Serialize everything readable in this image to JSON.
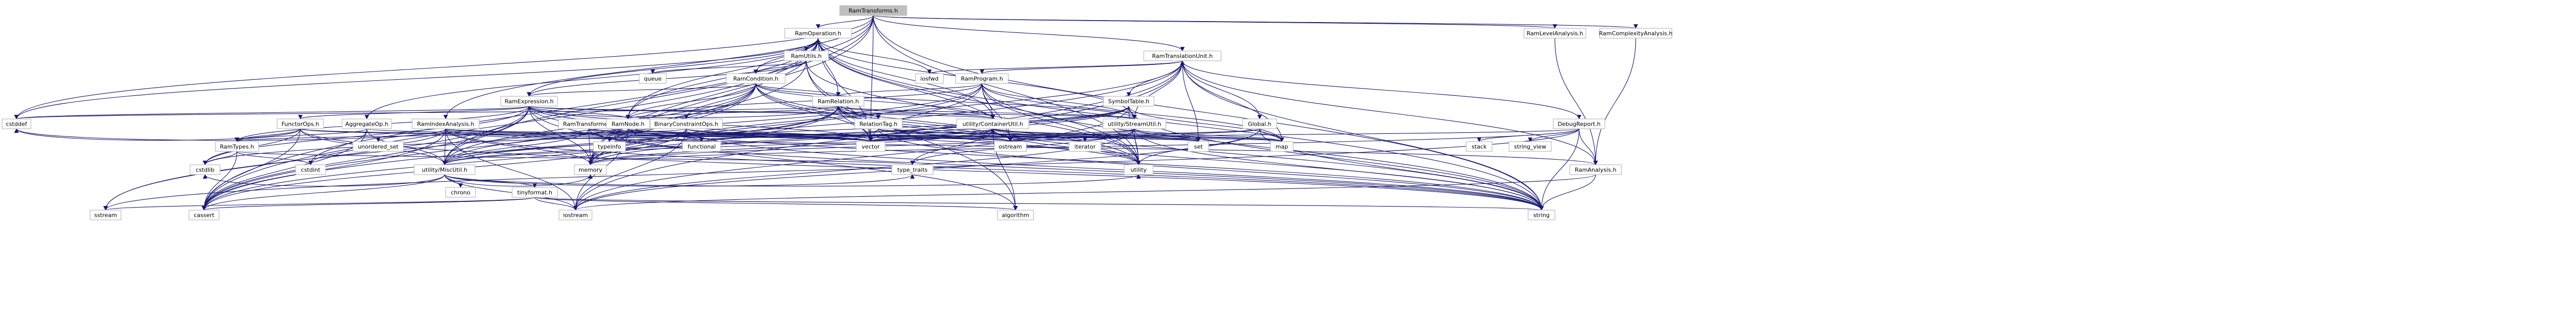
{
  "graph": {
    "root": "RamTransforms.h",
    "colors": {
      "edge": "#191970",
      "node_border": "#c0c0c0",
      "node_fill": "#ffffff",
      "root_fill": "#bfbfbf",
      "linked_border": "#ff0000",
      "text": "#000000"
    },
    "nodes": [
      {
        "id": "RamTransforms.h",
        "kind": "root"
      },
      {
        "id": "RamOperation.h",
        "kind": "file"
      },
      {
        "id": "RamTranslationUnit.h",
        "kind": "file"
      },
      {
        "id": "RamLevelAnalysis.h",
        "kind": "file"
      },
      {
        "id": "RamComplexityAnalysis.h",
        "kind": "file"
      },
      {
        "id": "RamUtils.h",
        "kind": "file"
      },
      {
        "id": "RamCondition.h",
        "kind": "file"
      },
      {
        "id": "RamProgram.h",
        "kind": "linked"
      },
      {
        "id": "SymbolTable.h",
        "kind": "linked"
      },
      {
        "id": "RamExpression.h",
        "kind": "file"
      },
      {
        "id": "RamRelation.h",
        "kind": "file"
      },
      {
        "id": "RamIndexAnalysis.h",
        "kind": "file"
      },
      {
        "id": "FunctorOps.h",
        "kind": "file"
      },
      {
        "id": "AggregateOp.h",
        "kind": "file"
      },
      {
        "id": "RamTransformer.h",
        "kind": "file"
      },
      {
        "id": "BinaryConstraintOps.h",
        "kind": "file"
      },
      {
        "id": "RamNode.h",
        "kind": "file"
      },
      {
        "id": "RelationTag.h",
        "kind": "file"
      },
      {
        "id": "utility/ContainerUtil.h",
        "kind": "file"
      },
      {
        "id": "utility/StreamUtil.h",
        "kind": "file"
      },
      {
        "id": "Global.h",
        "kind": "file"
      },
      {
        "id": "DebugReport.h",
        "kind": "file"
      },
      {
        "id": "RamTypes.h",
        "kind": "linked"
      },
      {
        "id": "utility/MiscUtil.h",
        "kind": "file"
      },
      {
        "id": "tinyformat.h",
        "kind": "file"
      },
      {
        "id": "RamAnalysis.h",
        "kind": "file"
      },
      {
        "id": "cstddef",
        "kind": "system"
      },
      {
        "id": "queue",
        "kind": "system"
      },
      {
        "id": "iosfwd",
        "kind": "system"
      },
      {
        "id": "unordered_set",
        "kind": "system"
      },
      {
        "id": "functional",
        "kind": "system"
      },
      {
        "id": "typeinfo",
        "kind": "system"
      },
      {
        "id": "vector",
        "kind": "system"
      },
      {
        "id": "ostream",
        "kind": "system"
      },
      {
        "id": "iterator",
        "kind": "system"
      },
      {
        "id": "set",
        "kind": "system"
      },
      {
        "id": "map",
        "kind": "system"
      },
      {
        "id": "stack",
        "kind": "system"
      },
      {
        "id": "string_view",
        "kind": "system"
      },
      {
        "id": "cstdlib",
        "kind": "system"
      },
      {
        "id": "cstdint",
        "kind": "system"
      },
      {
        "id": "chrono",
        "kind": "system"
      },
      {
        "id": "memory",
        "kind": "system"
      },
      {
        "id": "type_traits",
        "kind": "system"
      },
      {
        "id": "utility",
        "kind": "system"
      },
      {
        "id": "sstream",
        "kind": "system"
      },
      {
        "id": "cassert",
        "kind": "system"
      },
      {
        "id": "iostream",
        "kind": "system"
      },
      {
        "id": "algorithm",
        "kind": "system"
      },
      {
        "id": "string",
        "kind": "system"
      }
    ],
    "edges": [
      [
        "RamTransforms.h",
        "RamOperation.h"
      ],
      [
        "RamTransforms.h",
        "RamTranslationUnit.h"
      ],
      [
        "RamTransforms.h",
        "RamLevelAnalysis.h"
      ],
      [
        "RamTransforms.h",
        "RamComplexityAnalysis.h"
      ],
      [
        "RamTransforms.h",
        "RamIndexAnalysis.h"
      ],
      [
        "RamTransforms.h",
        "RamNode.h"
      ],
      [
        "RamTransforms.h",
        "vector"
      ],
      [
        "RamTransforms.h",
        "string"
      ],
      [
        "RamTransforms.h",
        "memory"
      ],
      [
        "RamTransforms.h",
        "utility"
      ],
      [
        "RamTransforms.h",
        "cstddef"
      ],
      [
        "RamTransforms.h",
        "cassert"
      ],
      [
        "RamOperation.h",
        "RamUtils.h"
      ],
      [
        "RamOperation.h",
        "RamCondition.h"
      ],
      [
        "RamOperation.h",
        "RamExpression.h"
      ],
      [
        "RamOperation.h",
        "RamRelation.h"
      ],
      [
        "RamOperation.h",
        "AggregateOp.h"
      ],
      [
        "RamOperation.h",
        "RamNode.h"
      ],
      [
        "RamOperation.h",
        "utility/ContainerUtil.h"
      ],
      [
        "RamOperation.h",
        "utility/MiscUtil.h"
      ],
      [
        "RamOperation.h",
        "utility/StreamUtil.h"
      ],
      [
        "RamOperation.h",
        "iosfwd"
      ],
      [
        "RamOperation.h",
        "cstddef"
      ],
      [
        "RamOperation.h",
        "vector"
      ],
      [
        "RamOperation.h",
        "ostream"
      ],
      [
        "RamOperation.h",
        "memory"
      ],
      [
        "RamOperation.h",
        "utility"
      ],
      [
        "RamOperation.h",
        "string"
      ],
      [
        "RamOperation.h",
        "cassert"
      ],
      [
        "RamUtils.h",
        "RamCondition.h"
      ],
      [
        "RamUtils.h",
        "RamExpression.h"
      ],
      [
        "RamUtils.h",
        "queue"
      ],
      [
        "RamUtils.h",
        "memory"
      ],
      [
        "RamUtils.h",
        "vector"
      ],
      [
        "RamUtils.h",
        "utility"
      ],
      [
        "RamUtils.h",
        "algorithm"
      ],
      [
        "RamCondition.h",
        "RamExpression.h"
      ],
      [
        "RamCondition.h",
        "RamRelation.h"
      ],
      [
        "RamCondition.h",
        "RamNode.h"
      ],
      [
        "RamCondition.h",
        "BinaryConstraintOps.h"
      ],
      [
        "RamCondition.h",
        "utility/ContainerUtil.h"
      ],
      [
        "RamCondition.h",
        "utility/MiscUtil.h"
      ],
      [
        "RamCondition.h",
        "utility/StreamUtil.h"
      ],
      [
        "RamCondition.h",
        "memory"
      ],
      [
        "RamCondition.h",
        "sstream"
      ],
      [
        "RamCondition.h",
        "string"
      ],
      [
        "RamCondition.h",
        "vector"
      ],
      [
        "RamCondition.h",
        "utility"
      ],
      [
        "RamCondition.h",
        "cassert"
      ],
      [
        "RamTranslationUnit.h",
        "RamProgram.h"
      ],
      [
        "RamTranslationUnit.h",
        "SymbolTable.h"
      ],
      [
        "RamTranslationUnit.h",
        "Global.h"
      ],
      [
        "RamTranslationUnit.h",
        "DebugReport.h"
      ],
      [
        "RamTranslationUnit.h",
        "RamAnalysis.h"
      ],
      [
        "RamTranslationUnit.h",
        "utility/StreamUtil.h"
      ],
      [
        "RamTranslationUnit.h",
        "iosfwd"
      ],
      [
        "RamTranslationUnit.h",
        "map"
      ],
      [
        "RamTranslationUnit.h",
        "set"
      ],
      [
        "RamTranslationUnit.h",
        "memory"
      ],
      [
        "RamTranslationUnit.h",
        "string"
      ],
      [
        "RamTranslationUnit.h",
        "iostream"
      ],
      [
        "RamTranslationUnit.h",
        "cassert"
      ],
      [
        "RamProgram.h",
        "RamRelation.h"
      ],
      [
        "RamProgram.h",
        "RamNode.h"
      ],
      [
        "RamProgram.h",
        "utility/ContainerUtil.h"
      ],
      [
        "RamProgram.h",
        "utility/MiscUtil.h"
      ],
      [
        "RamProgram.h",
        "utility/StreamUtil.h"
      ],
      [
        "RamProgram.h",
        "map"
      ],
      [
        "RamProgram.h",
        "memory"
      ],
      [
        "RamProgram.h",
        "ostream"
      ],
      [
        "RamProgram.h",
        "string"
      ],
      [
        "RamProgram.h",
        "utility"
      ],
      [
        "RamProgram.h",
        "vector"
      ],
      [
        "SymbolTable.h",
        "utility/MiscUtil.h"
      ],
      [
        "SymbolTable.h",
        "utility/StreamUtil.h"
      ],
      [
        "SymbolTable.h",
        "map"
      ],
      [
        "SymbolTable.h",
        "memory"
      ],
      [
        "SymbolTable.h",
        "string"
      ],
      [
        "SymbolTable.h",
        "vector"
      ],
      [
        "SymbolTable.h",
        "utility"
      ],
      [
        "SymbolTable.h",
        "iostream"
      ],
      [
        "SymbolTable.h",
        "cstdlib"
      ],
      [
        "RamExpression.h",
        "FunctorOps.h"
      ],
      [
        "RamExpression.h",
        "RamNode.h"
      ],
      [
        "RamExpression.h",
        "RamRelation.h"
      ],
      [
        "RamExpression.h",
        "RamTypes.h"
      ],
      [
        "RamExpression.h",
        "utility/ContainerUtil.h"
      ],
      [
        "RamExpression.h",
        "utility/MiscUtil.h"
      ],
      [
        "RamExpression.h",
        "utility/StreamUtil.h"
      ],
      [
        "RamExpression.h",
        "cstddef"
      ],
      [
        "RamExpression.h",
        "memory"
      ],
      [
        "RamExpression.h",
        "sstream"
      ],
      [
        "RamExpression.h",
        "string"
      ],
      [
        "RamExpression.h",
        "utility"
      ],
      [
        "RamExpression.h",
        "vector"
      ],
      [
        "RamExpression.h",
        "cassert"
      ],
      [
        "RamExpression.h",
        "cstdlib"
      ],
      [
        "RamExpression.h",
        "algorithm"
      ],
      [
        "RamRelation.h",
        "RamNode.h"
      ],
      [
        "RamRelation.h",
        "RelationTag.h"
      ],
      [
        "RamRelation.h",
        "utility/ContainerUtil.h"
      ],
      [
        "RamRelation.h",
        "utility/StreamUtil.h"
      ],
      [
        "RamRelation.h",
        "memory"
      ],
      [
        "RamRelation.h",
        "ostream"
      ],
      [
        "RamRelation.h",
        "string"
      ],
      [
        "RamRelation.h",
        "utility"
      ],
      [
        "RamRelation.h",
        "vector"
      ],
      [
        "RamRelation.h",
        "cassert"
      ],
      [
        "RamRelation.h",
        "cstddef"
      ],
      [
        "RamIndexAnalysis.h",
        "RamAnalysis.h"
      ],
      [
        "RamIndexAnalysis.h",
        "RamRelation.h"
      ],
      [
        "RamIndexAnalysis.h",
        "utility/MiscUtil.h"
      ],
      [
        "RamIndexAnalysis.h",
        "unordered_set"
      ],
      [
        "RamIndexAnalysis.h",
        "memory"
      ],
      [
        "RamIndexAnalysis.h",
        "set"
      ],
      [
        "RamIndexAnalysis.h",
        "map"
      ],
      [
        "RamIndexAnalysis.h",
        "string"
      ],
      [
        "RamIndexAnalysis.h",
        "vector"
      ],
      [
        "RamIndexAnalysis.h",
        "iostream"
      ],
      [
        "RamIndexAnalysis.h",
        "cassert"
      ],
      [
        "RamIndexAnalysis.h",
        "cstddef"
      ],
      [
        "RamIndexAnalysis.h",
        "cstdint"
      ],
      [
        "FunctorOps.h",
        "RamTypes.h"
      ],
      [
        "FunctorOps.h",
        "utility/MiscUtil.h"
      ],
      [
        "FunctorOps.h",
        "functional"
      ],
      [
        "FunctorOps.h",
        "string"
      ],
      [
        "FunctorOps.h",
        "vector"
      ],
      [
        "FunctorOps.h",
        "cassert"
      ],
      [
        "FunctorOps.h",
        "cstdlib"
      ],
      [
        "FunctorOps.h",
        "cstddef"
      ],
      [
        "AggregateOp.h",
        "RamTypes.h"
      ],
      [
        "AggregateOp.h",
        "utility/MiscUtil.h"
      ],
      [
        "AggregateOp.h",
        "ostream"
      ],
      [
        "AggregateOp.h",
        "cassert"
      ],
      [
        "AggregateOp.h",
        "cstdint"
      ],
      [
        "RamTransformer.h",
        "RamTranslationUnit.h"
      ],
      [
        "RamTransformer.h",
        "utility/MiscUtil.h"
      ],
      [
        "RamTransformer.h",
        "typeinfo"
      ],
      [
        "RamTransformer.h",
        "memory"
      ],
      [
        "RamTransformer.h",
        "string"
      ],
      [
        "RamTransformer.h",
        "vector"
      ],
      [
        "RamTransformer.h",
        "set"
      ],
      [
        "BinaryConstraintOps.h",
        "RamTypes.h"
      ],
      [
        "BinaryConstraintOps.h",
        "utility/MiscUtil.h"
      ],
      [
        "BinaryConstraintOps.h",
        "iostream"
      ],
      [
        "BinaryConstraintOps.h",
        "string"
      ],
      [
        "BinaryConstraintOps.h",
        "vector"
      ],
      [
        "BinaryConstraintOps.h",
        "cassert"
      ],
      [
        "BinaryConstraintOps.h",
        "ostream"
      ],
      [
        "RamNode.h",
        "functional"
      ],
      [
        "RamNode.h",
        "memory"
      ],
      [
        "RamNode.h",
        "vector"
      ],
      [
        "RamNode.h",
        "typeinfo"
      ],
      [
        "RamNode.h",
        "ostream"
      ],
      [
        "RamNode.h",
        "iostream"
      ],
      [
        "RelationTag.h",
        "utility/MiscUtil.h"
      ],
      [
        "RelationTag.h",
        "map"
      ],
      [
        "RelationTag.h",
        "set"
      ],
      [
        "RelationTag.h",
        "ostream"
      ],
      [
        "RelationTag.h",
        "string"
      ],
      [
        "utility/ContainerUtil.h",
        "utility/MiscUtil.h"
      ],
      [
        "utility/ContainerUtil.h",
        "functional"
      ],
      [
        "utility/ContainerUtil.h",
        "iterator"
      ],
      [
        "utility/ContainerUtil.h",
        "map"
      ],
      [
        "utility/ContainerUtil.h",
        "set"
      ],
      [
        "utility/ContainerUtil.h",
        "memory"
      ],
      [
        "utility/ContainerUtil.h",
        "utility"
      ],
      [
        "utility/ContainerUtil.h",
        "vector"
      ],
      [
        "utility/ContainerUtil.h",
        "type_traits"
      ],
      [
        "utility/ContainerUtil.h",
        "algorithm"
      ],
      [
        "utility/StreamUtil.h",
        "utility/ContainerUtil.h"
      ],
      [
        "utility/StreamUtil.h",
        "map"
      ],
      [
        "utility/StreamUtil.h",
        "set"
      ],
      [
        "utility/StreamUtil.h",
        "memory"
      ],
      [
        "utility/StreamUtil.h",
        "ostream"
      ],
      [
        "utility/StreamUtil.h",
        "string"
      ],
      [
        "utility/StreamUtil.h",
        "utility"
      ],
      [
        "utility/StreamUtil.h",
        "vector"
      ],
      [
        "utility/StreamUtil.h",
        "type_traits"
      ],
      [
        "utility/StreamUtil.h",
        "iostream"
      ],
      [
        "Global.h",
        "map"
      ],
      [
        "Global.h",
        "string"
      ],
      [
        "Global.h",
        "vector"
      ],
      [
        "Global.h",
        "utility"
      ],
      [
        "Global.h",
        "ostream"
      ],
      [
        "Global.h",
        "iostream"
      ],
      [
        "DebugReport.h",
        "RamAnalysis.h"
      ],
      [
        "DebugReport.h",
        "stack"
      ],
      [
        "DebugReport.h",
        "string_view"
      ],
      [
        "DebugReport.h",
        "sstream"
      ],
      [
        "DebugReport.h",
        "string"
      ],
      [
        "DebugReport.h",
        "vector"
      ],
      [
        "DebugReport.h",
        "memory"
      ],
      [
        "RamLevelAnalysis.h",
        "RamAnalysis.h"
      ],
      [
        "RamComplexityAnalysis.h",
        "RamAnalysis.h"
      ],
      [
        "RamAnalysis.h",
        "string"
      ],
      [
        "RamAnalysis.h",
        "iostream"
      ],
      [
        "RamTypes.h",
        "type_traits"
      ],
      [
        "RamTypes.h",
        "cassert"
      ],
      [
        "RamTypes.h",
        "cstdint"
      ],
      [
        "RamTypes.h",
        "cstdlib"
      ],
      [
        "utility/MiscUtil.h",
        "tinyformat.h"
      ],
      [
        "utility/MiscUtil.h",
        "chrono"
      ],
      [
        "utility/MiscUtil.h",
        "memory"
      ],
      [
        "utility/MiscUtil.h",
        "type_traits"
      ],
      [
        "utility/MiscUtil.h",
        "utility"
      ],
      [
        "utility/MiscUtil.h",
        "iostream"
      ],
      [
        "utility/MiscUtil.h",
        "cassert"
      ],
      [
        "utility/MiscUtil.h",
        "cstdlib"
      ],
      [
        "tinyformat.h",
        "sstream"
      ],
      [
        "tinyformat.h",
        "string"
      ],
      [
        "tinyformat.h",
        "iostream"
      ],
      [
        "tinyformat.h",
        "cassert"
      ],
      [
        "tinyformat.h",
        "algorithm"
      ]
    ]
  }
}
